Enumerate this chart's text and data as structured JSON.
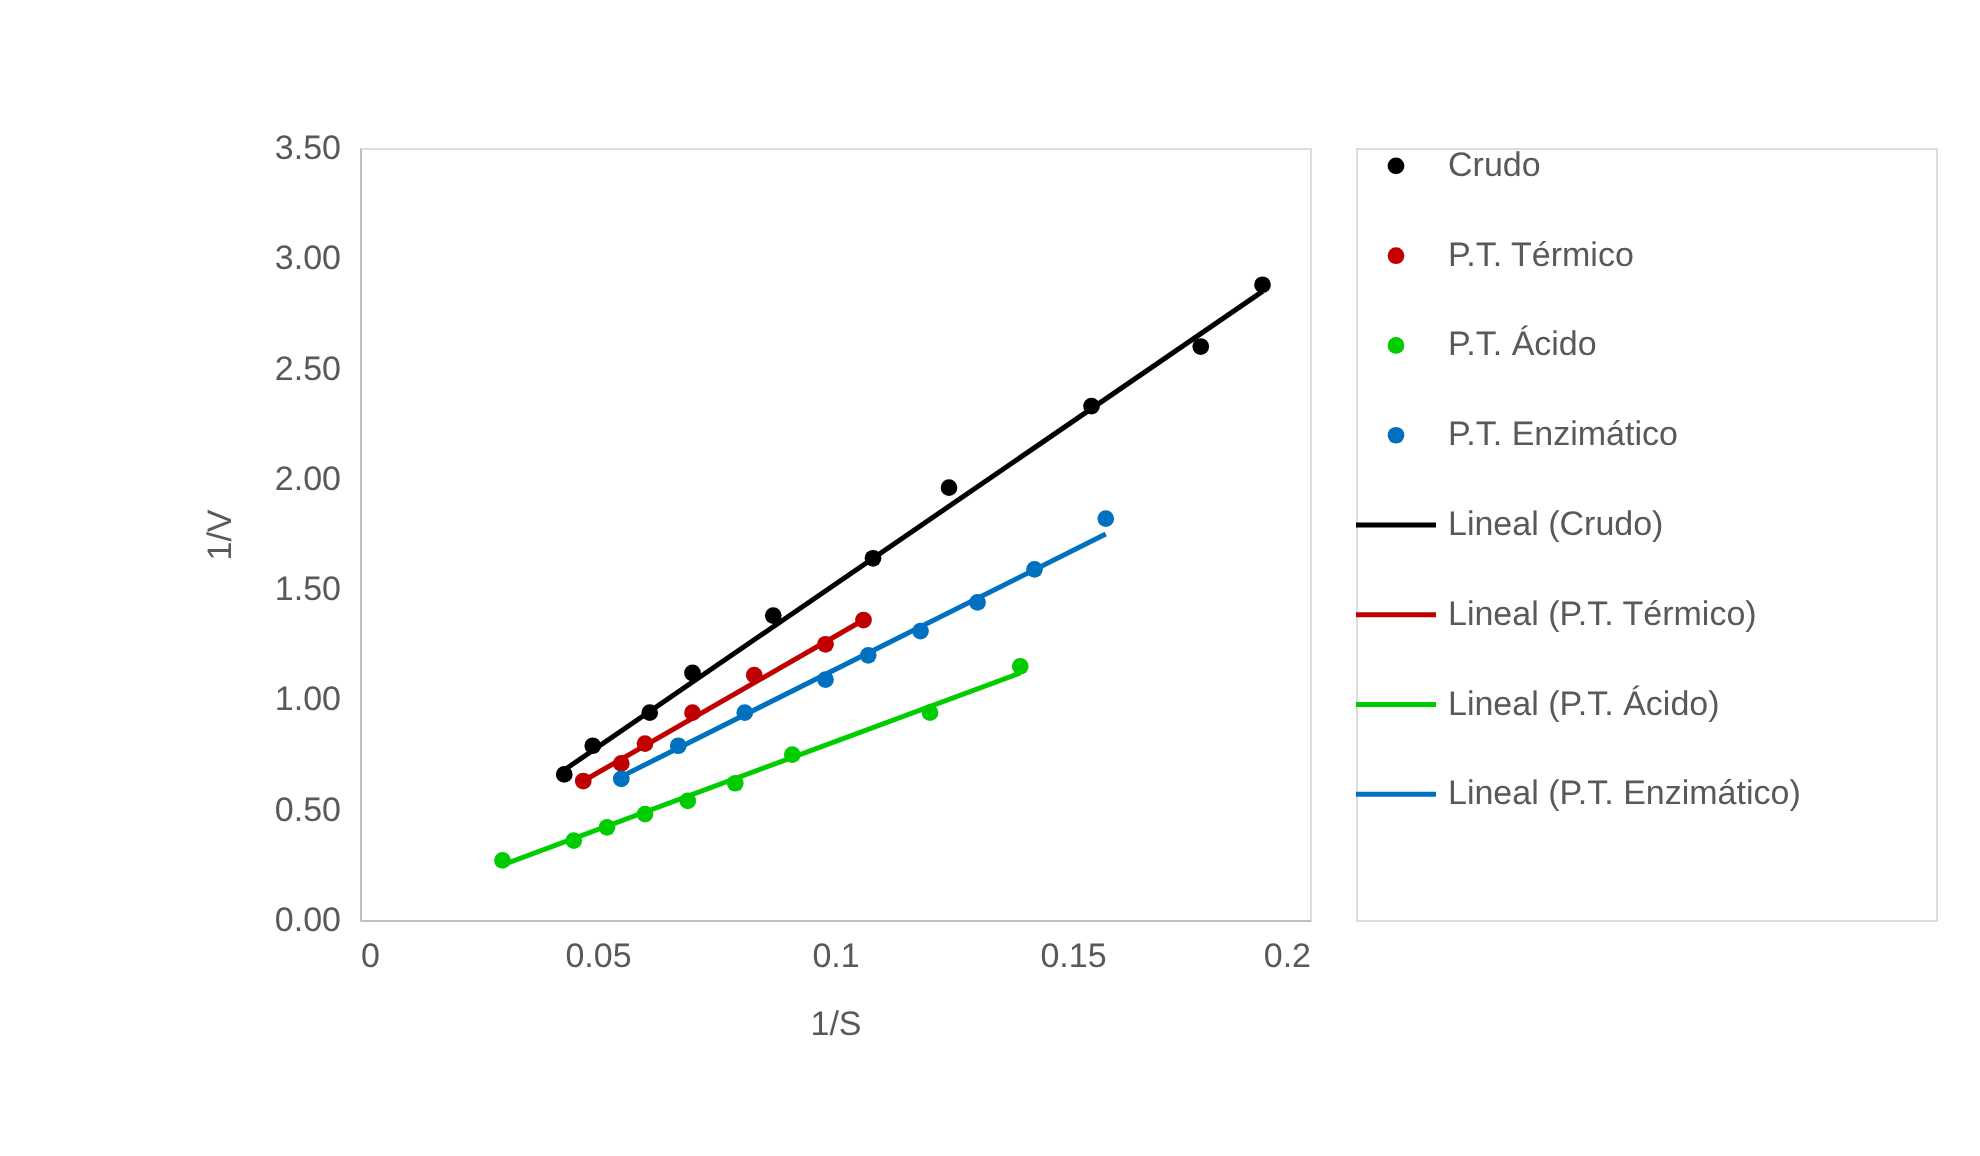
{
  "chart_data": {
    "type": "scatter",
    "xlabel": "1/S",
    "ylabel": "1/V",
    "legend": "right",
    "grid": false,
    "xlim": [
      0,
      0.2
    ],
    "xticks": [
      {
        "value": 0,
        "label": "0"
      },
      0.05,
      {
        "value": 0.1,
        "label": "0.1"
      },
      0.15,
      {
        "value": 0.2,
        "label": "0.2"
      }
    ],
    "ylim": [
      0,
      3.5
    ],
    "yticks": [
      {
        "value": 0,
        "label": "0.00"
      },
      {
        "value": 0.5,
        "label": "0.50"
      },
      {
        "value": 1,
        "label": "1.00"
      },
      {
        "value": 1.5,
        "label": "1.50"
      },
      {
        "value": 2,
        "label": "2.00"
      },
      {
        "value": 2.5,
        "label": "2.50"
      },
      {
        "value": 3,
        "label": "3.00"
      },
      {
        "value": 3.5,
        "label": "3.50"
      }
    ],
    "series": [
      {
        "name": "Crudo",
        "marker": "circle",
        "color": "#000000",
        "x": [
          0.043,
          0.049,
          0.061,
          0.07,
          0.087,
          0.108,
          0.124,
          0.154,
          0.177,
          0.19
        ],
        "values": [
          0.66,
          0.79,
          0.94,
          1.12,
          1.38,
          1.64,
          1.96,
          2.33,
          2.6,
          2.88
        ]
      },
      {
        "name": "P.T. Térmico",
        "marker": "circle",
        "color": "#c00000",
        "x": [
          0.047,
          0.055,
          0.06,
          0.07,
          0.083,
          0.098,
          0.106
        ],
        "values": [
          0.63,
          0.71,
          0.8,
          0.94,
          1.11,
          1.25,
          1.36
        ]
      },
      {
        "name": "P.T. Ácido",
        "marker": "circle",
        "color": "#00cc00",
        "x": [
          0.03,
          0.045,
          0.052,
          0.06,
          0.069,
          0.079,
          0.091,
          0.12,
          0.139
        ],
        "values": [
          0.27,
          0.36,
          0.42,
          0.48,
          0.54,
          0.62,
          0.75,
          0.94,
          1.15
        ]
      },
      {
        "name": "P.T. Enzimático",
        "marker": "circle",
        "color": "#0070c0",
        "x": [
          0.055,
          0.067,
          0.081,
          0.098,
          0.107,
          0.118,
          0.13,
          0.142,
          0.157
        ],
        "values": [
          0.64,
          0.79,
          0.94,
          1.09,
          1.2,
          1.31,
          1.44,
          1.59,
          1.82
        ]
      },
      {
        "name": "Lineal (Crudo)",
        "type": "line",
        "line_style": "solid",
        "color": "#000000",
        "x": [
          0.043,
          0.19
        ],
        "values": [
          0.68,
          2.85
        ]
      },
      {
        "name": "Lineal (P.T. Térmico)",
        "type": "line",
        "line_style": "solid",
        "color": "#c00000",
        "x": [
          0.047,
          0.106
        ],
        "values": [
          0.63,
          1.36
        ]
      },
      {
        "name": "Lineal (P.T. Ácido)",
        "type": "line",
        "line_style": "solid",
        "color": "#00cc00",
        "x": [
          0.03,
          0.139
        ],
        "values": [
          0.25,
          1.12
        ]
      },
      {
        "name": "Lineal (P.T. Enzimático)",
        "type": "line",
        "line_style": "solid",
        "color": "#0070c0",
        "x": [
          0.055,
          0.157
        ],
        "values": [
          0.65,
          1.75
        ]
      }
    ]
  }
}
